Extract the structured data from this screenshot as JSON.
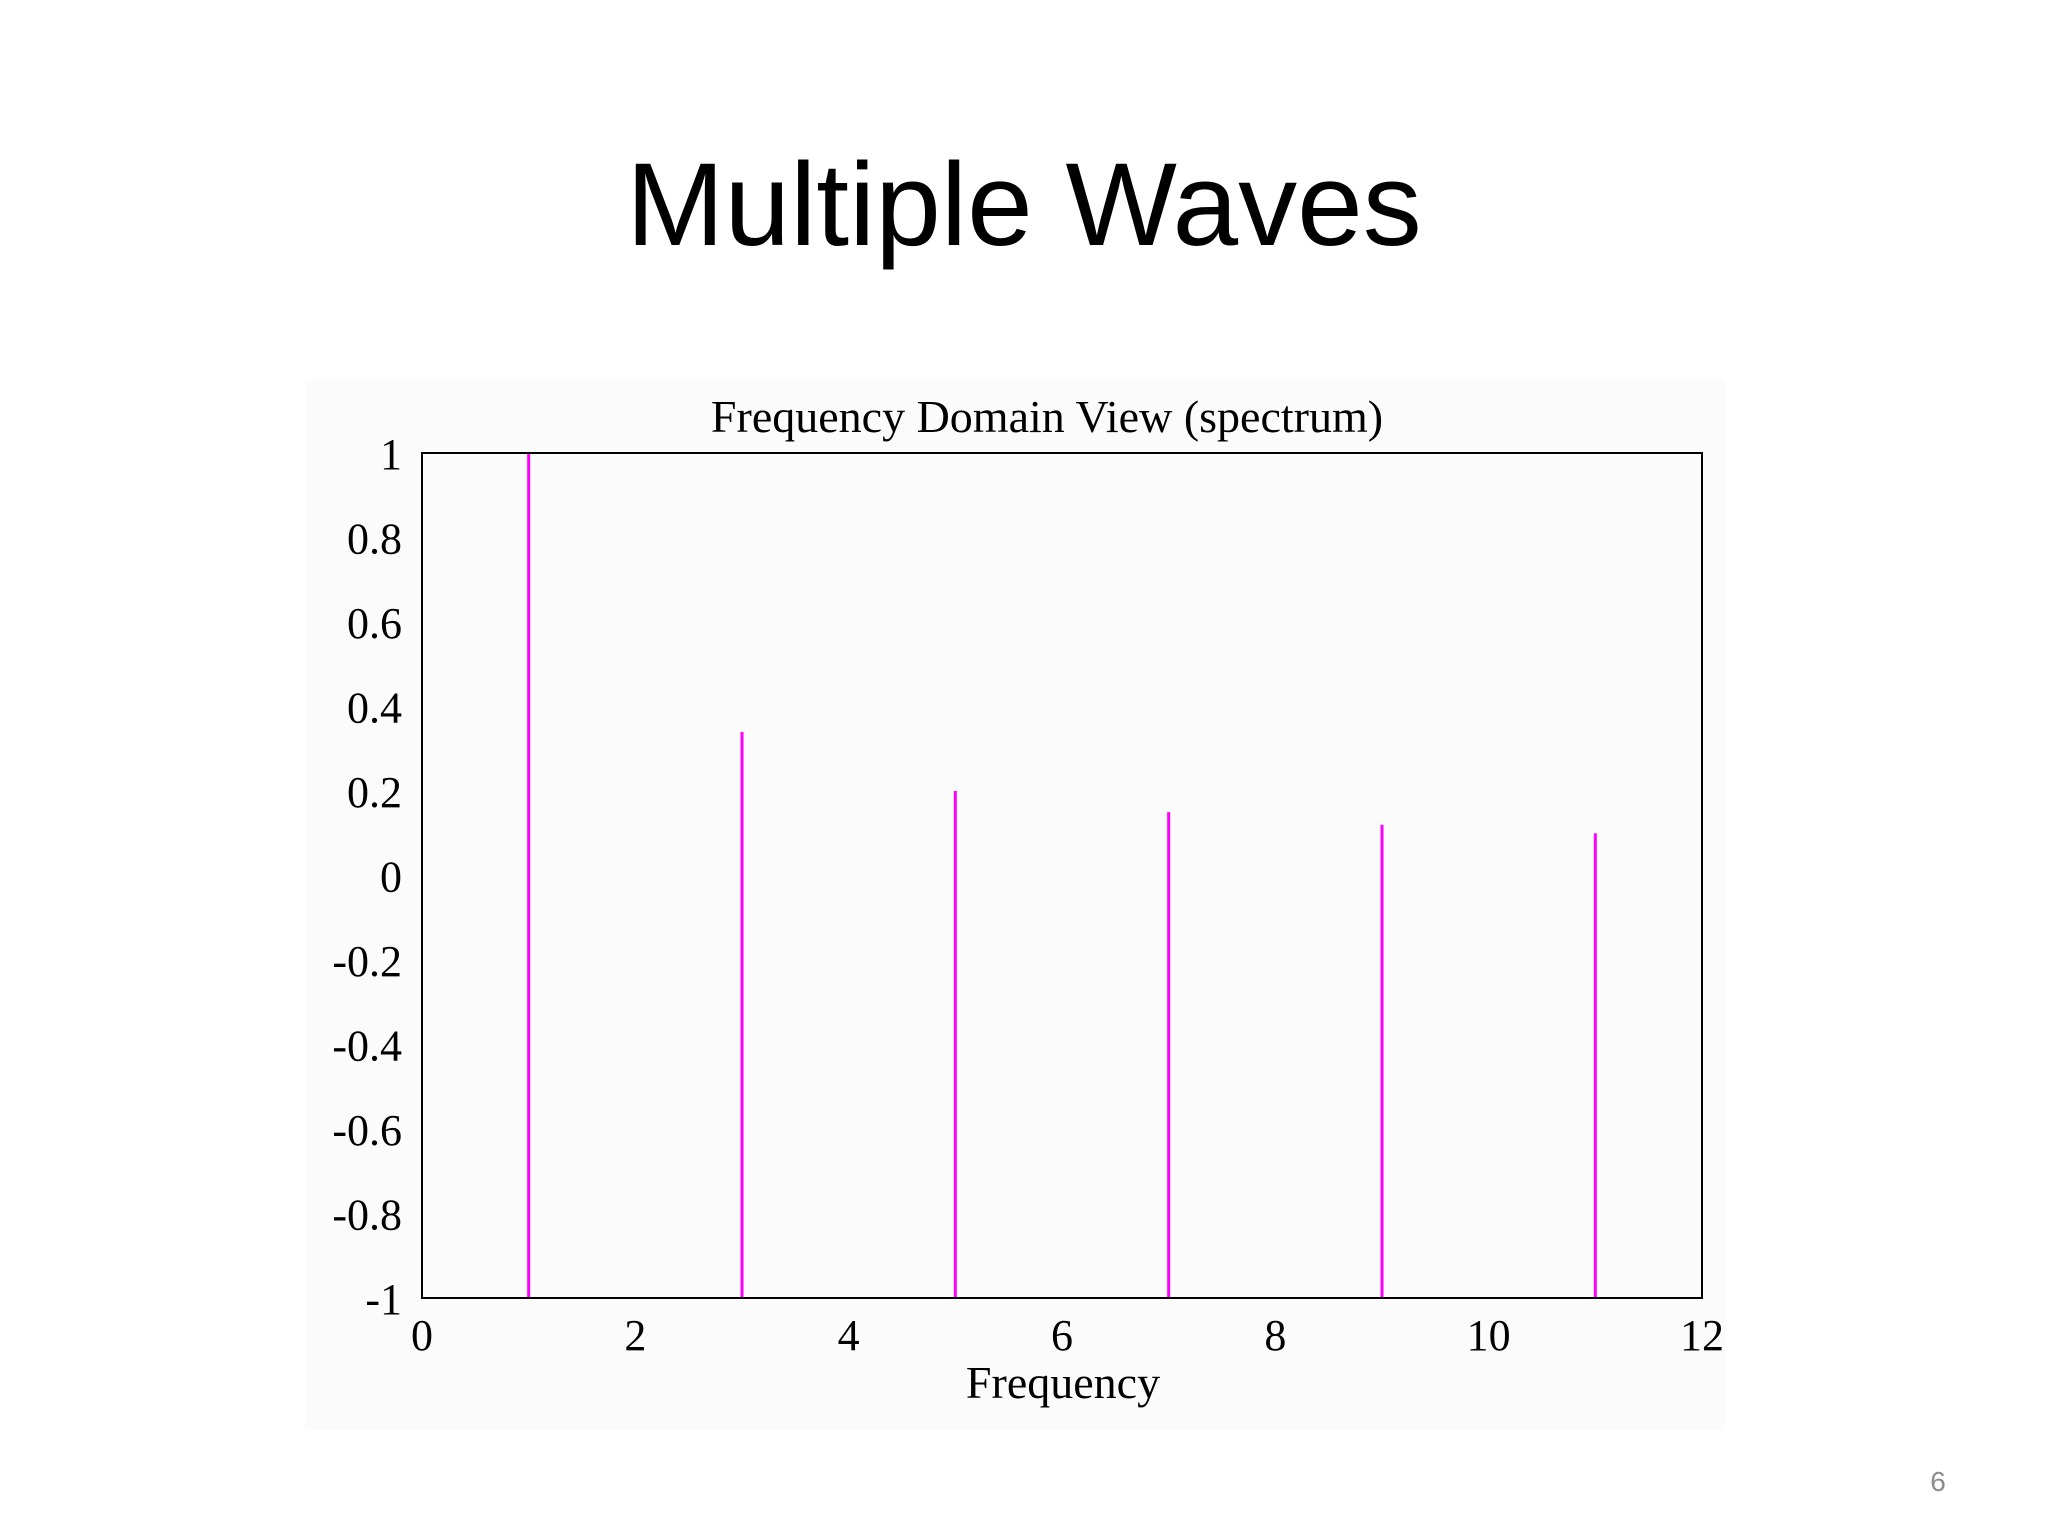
{
  "slide": {
    "title": "Multiple Waves",
    "page_number": "6"
  },
  "chart_data": {
    "type": "bar",
    "title": "Frequency Domain View (spectrum)",
    "xlabel": "Frequency",
    "ylabel": "",
    "xlim": [
      0,
      12
    ],
    "ylim": [
      -1,
      1
    ],
    "xticks": [
      "0",
      "2",
      "4",
      "6",
      "8",
      "10",
      "12"
    ],
    "yticks": [
      "1",
      "0.8",
      "0.6",
      "0.4",
      "0.2",
      "0",
      "-0.2",
      "-0.4",
      "-0.6",
      "-0.8",
      "-1"
    ],
    "grid": false,
    "stem_color": "#ff00ff",
    "x": [
      1,
      3,
      5,
      7,
      9,
      11
    ],
    "values": [
      1.0,
      0.34,
      0.2,
      0.15,
      0.12,
      0.1
    ]
  }
}
